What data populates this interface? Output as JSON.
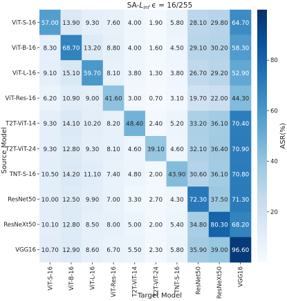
{
  "chart_data": {
    "type": "heatmap",
    "title": "SA-L_inf ε = 16/255",
    "title_parts": {
      "prefix": "SA-",
      "sym": "L",
      "sub": "inf",
      "mid": " ϵ = ",
      "frac": "16/255"
    },
    "xlabel": "Target Model",
    "ylabel": "Source Model",
    "colorbar_label": "ASR(%)",
    "colorbar_ticks": [
      "20",
      "40",
      "60",
      "80"
    ],
    "colorbar_range": [
      0,
      100
    ],
    "colorscale": "Blues",
    "rows": [
      "ViT-S-16",
      "ViT-B-16",
      "ViT-L-16",
      "ViT-Res-16",
      "T2T-ViT-14",
      "T2T-ViT-24",
      "TNT-S-16",
      "ResNet50",
      "ResNeXt50",
      "VGG16"
    ],
    "columns": [
      "ViT-S-16",
      "ViT-B-16",
      "ViT-L-16",
      "ViT-Res-16",
      "T2T-ViT-14",
      "T2T-ViT-24",
      "TNT-S-16",
      "ResNet50",
      "ResNeXt50",
      "VGG16"
    ],
    "values": [
      [
        "57.00",
        "13.90",
        "9.30",
        "7.60",
        "4.00",
        "1.90",
        "5.80",
        "28.10",
        "29.80",
        "64.70"
      ],
      [
        "8.30",
        "68.70",
        "13.20",
        "8.80",
        "4.00",
        "1.60",
        "4.50",
        "29.10",
        "30.20",
        "58.30"
      ],
      [
        "9.10",
        "15.10",
        "59.70",
        "8.10",
        "3.80",
        "1.30",
        "3.80",
        "26.70",
        "29.20",
        "52.90"
      ],
      [
        "6.20",
        "10.90",
        "9.00",
        "41.60",
        "3.00",
        "0.70",
        "3.10",
        "19.70",
        "22.00",
        "44.30"
      ],
      [
        "9.30",
        "14.10",
        "10.20",
        "8.20",
        "48.40",
        "2.40",
        "5.20",
        "33.20",
        "36.10",
        "70.40"
      ],
      [
        "9.30",
        "12.80",
        "9.30",
        "8.10",
        "4.60",
        "39.10",
        "4.60",
        "32.10",
        "36.40",
        "70.90"
      ],
      [
        "10.50",
        "14.20",
        "11.10",
        "7.40",
        "4.80",
        "2.00",
        "43.90",
        "30.60",
        "36.10",
        "70.80"
      ],
      [
        "10.00",
        "12.50",
        "9.90",
        "7.00",
        "3.30",
        "2.70",
        "4.30",
        "72.30",
        "37.50",
        "71.30"
      ],
      [
        "10.10",
        "12.80",
        "8.50",
        "8.00",
        "5.00",
        "2.00",
        "5.40",
        "34.80",
        "80.30",
        "68.20"
      ],
      [
        "10.70",
        "12.90",
        "8.60",
        "6.70",
        "5.50",
        "2.30",
        "5.80",
        "35.90",
        "39.00",
        "96.60"
      ]
    ]
  }
}
